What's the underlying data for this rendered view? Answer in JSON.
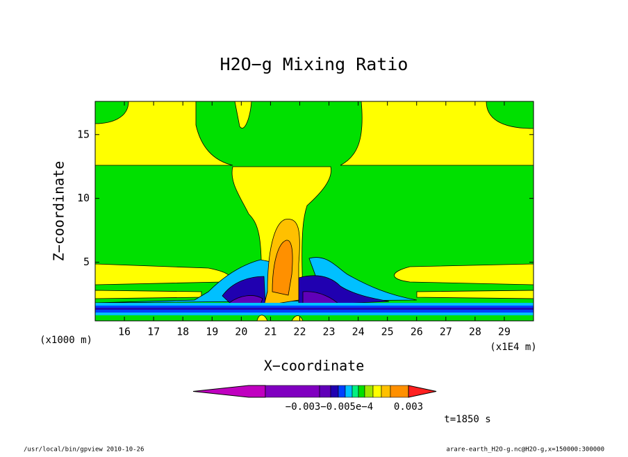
{
  "chart_data": {
    "type": "contour",
    "title": "H2O−g Mixing Ratio",
    "xlabel": "X−coordinate",
    "ylabel": "Z−coordinate",
    "xunit": "(x1E4 m)",
    "yunit": "(x1000 m)",
    "xlim": [
      15,
      30
    ],
    "ylim": [
      0.4,
      17.6
    ],
    "xticks": [
      16,
      17,
      18,
      19,
      20,
      21,
      22,
      23,
      24,
      25,
      26,
      27,
      28,
      29
    ],
    "yticks": [
      5,
      10,
      15
    ],
    "colorbar": {
      "colors": [
        "#c000c0",
        "#8000c0",
        "#6000b8",
        "#2000b0",
        "#0040ff",
        "#00c0ff",
        "#00f080",
        "#00e000",
        "#a0e600",
        "#ffff00",
        "#ffc000",
        "#ff9000",
        "#ff2020"
      ],
      "labels": [
        "−0.003−0.005e−4",
        "0.003"
      ]
    }
  },
  "footer": {
    "program": "/usr/local/bin/gpview  2010-10-26",
    "source": "arare-earth_H2O-g.nc@H2O-g,x=150000:300000",
    "time": "t=1850 s"
  }
}
